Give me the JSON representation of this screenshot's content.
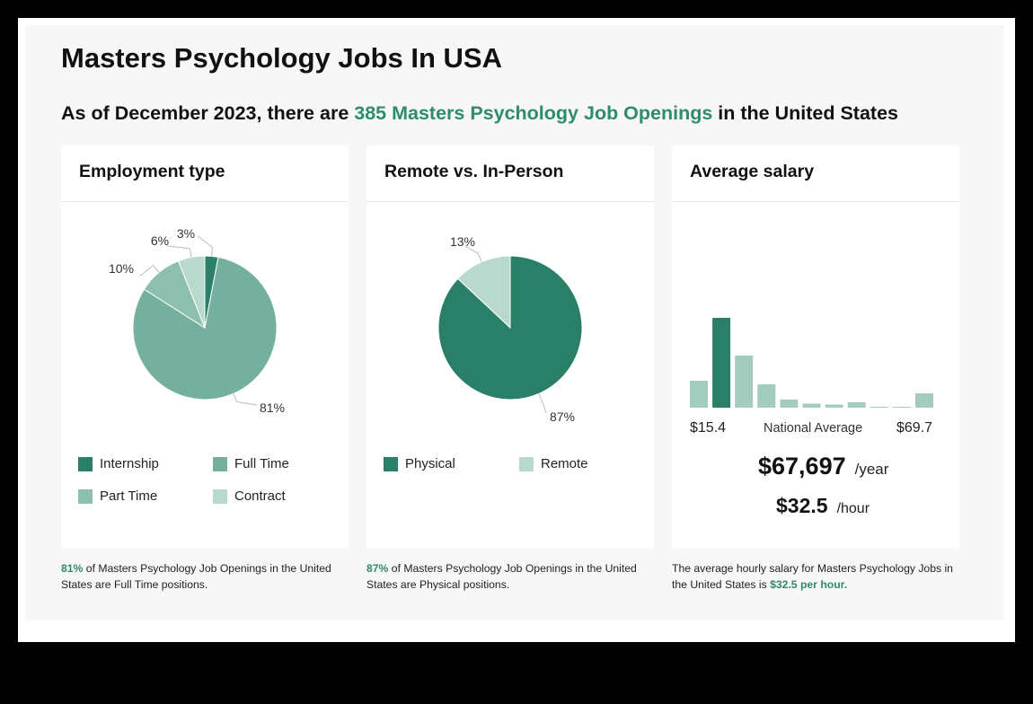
{
  "title": "Masters Psychology Jobs In USA",
  "subtitle": {
    "pre": "As of December 2023, there are ",
    "highlight": "385 Masters Psychology Job Openings",
    "post": " in the United States"
  },
  "colors": {
    "dark": "#2a7f69",
    "mid": "#74b09d",
    "light": "#a3cbbe",
    "pale": "#b9d9cf",
    "accent_text": "#2e8b6c"
  },
  "chart_data": [
    {
      "type": "pie",
      "title": "Employment type",
      "slices": [
        {
          "name": "Internship",
          "value": 3,
          "label": "3%"
        },
        {
          "name": "Full Time",
          "value": 81,
          "label": "81%"
        },
        {
          "name": "Part Time",
          "value": 10,
          "label": "10%"
        },
        {
          "name": "Contract",
          "value": 6,
          "label": "6%"
        }
      ],
      "legend": [
        "Internship",
        "Full Time",
        "Part Time",
        "Contract"
      ]
    },
    {
      "type": "pie",
      "title": "Remote vs. In-Person",
      "slices": [
        {
          "name": "Physical",
          "value": 87,
          "label": "87%"
        },
        {
          "name": "Remote",
          "value": 13,
          "label": "13%"
        }
      ],
      "legend": [
        "Physical",
        "Remote"
      ]
    },
    {
      "type": "bar",
      "title": "Average salary",
      "values": [
        3,
        10,
        5.8,
        2.6,
        0.9,
        0.45,
        0.35,
        0.6,
        0.1,
        0.1,
        1.6
      ],
      "highlight_index": 1,
      "x_min_label": "$15.4",
      "x_max_label": "$69.7",
      "center_label": "National Average",
      "yearly": "$67,697",
      "yearly_unit": "/year",
      "hourly": "$32.5",
      "hourly_unit": "/hour"
    }
  ],
  "notes": [
    {
      "highlight": "81%",
      "text": " of Masters Psychology Job Openings in the United States are Full Time positions."
    },
    {
      "highlight": "87%",
      "text": " of Masters Psychology Job Openings in the United States are Physical positions."
    },
    {
      "text": "The average hourly salary for Masters Psychology Jobs in the United States is ",
      "highlight": "$32.5 per hour."
    }
  ]
}
